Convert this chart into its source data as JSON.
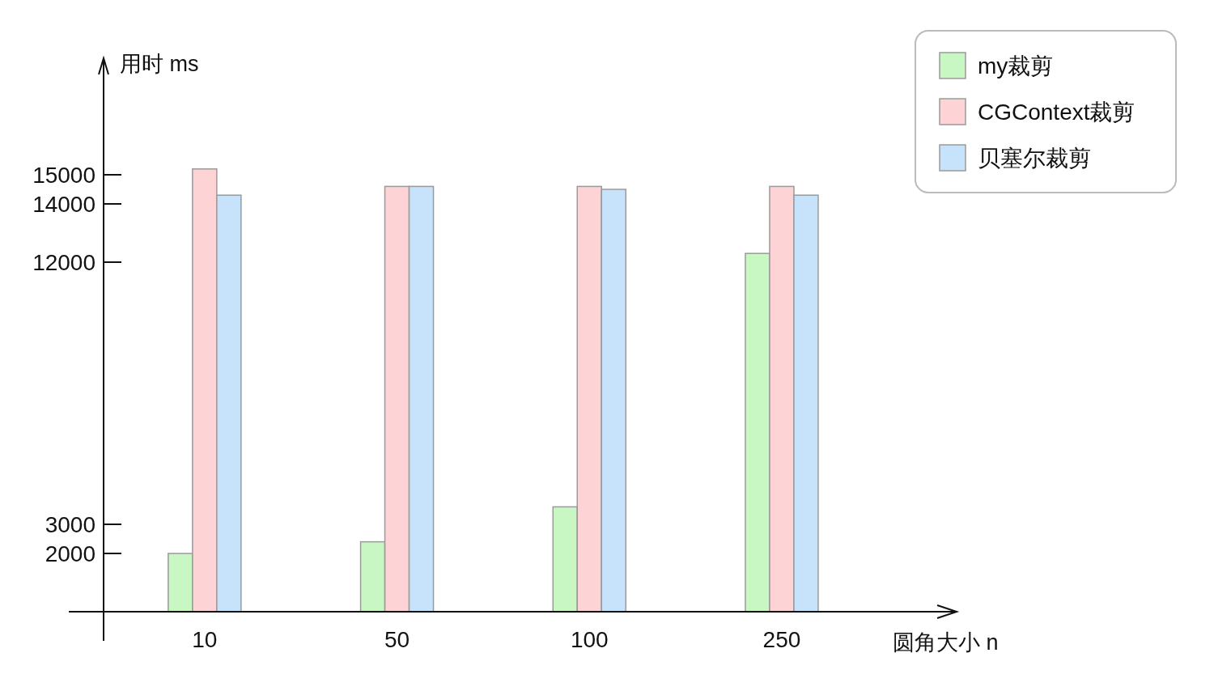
{
  "chart_data": {
    "type": "bar",
    "categories": [
      "10",
      "50",
      "100",
      "250"
    ],
    "series": [
      {
        "name": "my裁剪",
        "color": "#c9f7c4",
        "values": [
          2000,
          2400,
          3600,
          12300
        ]
      },
      {
        "name": "CGContext裁剪",
        "color": "#fdd3d5",
        "values": [
          15200,
          14600,
          14600,
          14600
        ]
      },
      {
        "name": "贝塞尔裁剪",
        "color": "#c6e3fb",
        "values": [
          14300,
          14600,
          14500,
          14300
        ]
      }
    ],
    "ylabel": "用时 ms",
    "xlabel": "圆角大小 n",
    "ylim": [
      -1000,
      19000
    ],
    "yticks": [
      2000,
      3000,
      12000,
      14000,
      15000
    ],
    "grid": false,
    "legend": "top right"
  }
}
